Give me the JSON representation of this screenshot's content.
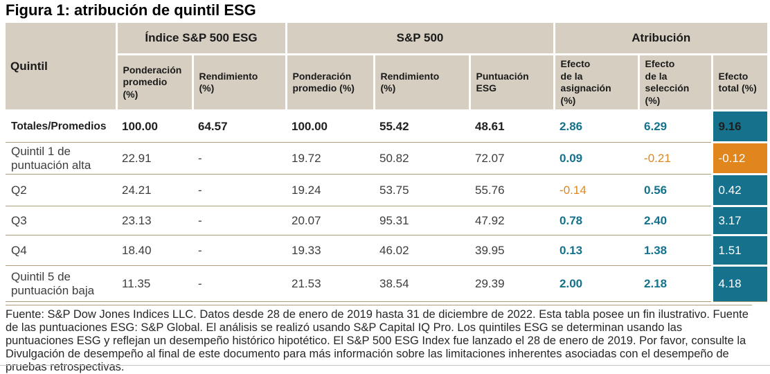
{
  "title": "Figura 1: atribución de quintil ESG",
  "colors": {
    "header_bg": "#d5cec1",
    "teal": "#15718c",
    "orange": "#e0861c",
    "row_line": "#ac9c78"
  },
  "table": {
    "corner_label": "Quintil",
    "groups": [
      {
        "label": "Índice S&P 500 ESG"
      },
      {
        "label": "S&P 500"
      },
      {
        "label": "Atribución"
      }
    ],
    "columns": [
      "Ponderación\npromedio\n(%)",
      "Rendimiento\n(%)",
      "Ponderación\npromedio (%)",
      "Rendimiento\n(%)",
      "Puntuación\nESG",
      "Efecto\nde la\nasignación\n(%)",
      "Efecto\nde la\nselección\n(%)",
      "Efecto\ntotal (%)"
    ],
    "rows": [
      {
        "label": "Totales/Promedios",
        "bold": true,
        "values": [
          "100.00",
          "64.57",
          "100.00",
          "55.42",
          "48.61"
        ],
        "asignacion": "2.86",
        "seleccion": "6.29",
        "total": "9.16"
      },
      {
        "label": "Quintil 1 de puntuación alta",
        "bold": false,
        "values": [
          "22.91",
          "-",
          "19.72",
          "50.82",
          "72.07"
        ],
        "asignacion": "0.09",
        "seleccion": "-0.21",
        "total": "-0.12"
      },
      {
        "label": "Q2",
        "bold": false,
        "values": [
          "24.21",
          "-",
          "19.24",
          "53.75",
          "55.76"
        ],
        "asignacion": "-0.14",
        "seleccion": "0.56",
        "total": "0.42"
      },
      {
        "label": "Q3",
        "bold": false,
        "values": [
          "23.13",
          "-",
          "20.07",
          "95.31",
          "47.92"
        ],
        "asignacion": "0.78",
        "seleccion": "2.40",
        "total": "3.17"
      },
      {
        "label": "Q4",
        "bold": false,
        "values": [
          "18.40",
          "-",
          "19.33",
          "46.02",
          "39.95"
        ],
        "asignacion": "0.13",
        "seleccion": "1.38",
        "total": "1.51"
      },
      {
        "label": "Quintil 5 de puntuación baja",
        "bold": false,
        "values": [
          "11.35",
          "-",
          "21.53",
          "38.54",
          "29.39"
        ],
        "asignacion": "2.00",
        "seleccion": "2.18",
        "total": "4.18"
      }
    ]
  },
  "footnote": "Fuente: S&P Dow Jones Indices LLC. Datos desde 28 de enero de 2019 hasta 31 de diciembre de 2022. Esta tabla posee un fin ilustrativo. Fuente de las puntuaciones ESG: S&P Global. El análisis se realizó usando S&P Capital IQ Pro. Los quintiles ESG se determinan usando las puntuaciones ESG y reflejan un desempeño histórico hipotético. El S&P 500 ESG Index fue lanzado el 28 de enero de 2019. Por favor, consulte la Divulgación de desempeño al final de este documento para más información sobre las limitaciones inherentes asociadas con el desempeño de pruebas retrospectivas."
}
